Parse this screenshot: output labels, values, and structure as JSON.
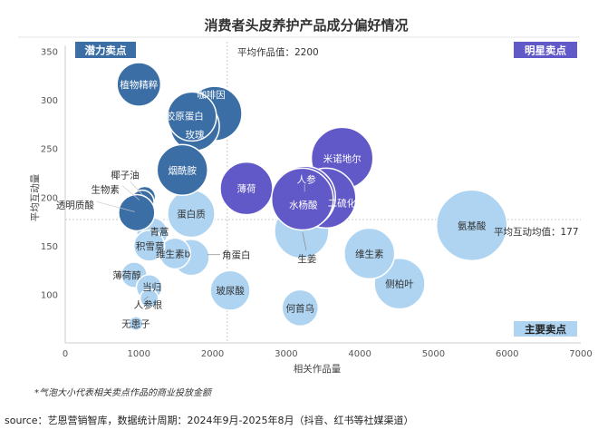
{
  "chart_data": {
    "type": "bubble",
    "title": "消费者头皮养护产品成分偏好情况",
    "xlabel": "相关作品量",
    "ylabel": "平均互动量",
    "xlim": [
      0,
      7000
    ],
    "ylim": [
      50,
      350
    ],
    "xticks": [
      "0",
      "1000",
      "2000",
      "3000",
      "4000",
      "5000",
      "6000",
      "7000"
    ],
    "yticks": [
      "100",
      "150",
      "200",
      "250",
      "300",
      "350"
    ],
    "grid": false,
    "reference_lines": {
      "x_mean": 2200,
      "x_mean_label": "平均作品值：2200",
      "y_mean": 177,
      "y_mean_label": "平均互动均值：177"
    },
    "quadrants": {
      "potential": {
        "label": "潜力卖点",
        "color": "#3a6ea5"
      },
      "star": {
        "label": "明星卖点",
        "color": "#6259c8"
      },
      "main": {
        "label": "主要卖点",
        "color": "#aed4f2"
      }
    },
    "size_note": "*气泡大小代表相关卖点作品的商业投放金额",
    "bubbles": [
      {
        "name": "氨基酸",
        "x": 5520,
        "y": 171,
        "size": 152,
        "group": "main"
      },
      {
        "name": "侧柏叶",
        "x": 4540,
        "y": 111,
        "size": 78,
        "group": "main"
      },
      {
        "name": "维生素",
        "x": 4130,
        "y": 142,
        "size": 78,
        "group": "main"
      },
      {
        "name": "生姜",
        "x": 3210,
        "y": 165,
        "size": 90,
        "group": "main"
      },
      {
        "name": "何首乌",
        "x": 3190,
        "y": 86,
        "size": 40,
        "group": "main"
      },
      {
        "name": "玻尿酸",
        "x": 2240,
        "y": 104,
        "size": 48,
        "group": "main"
      },
      {
        "name": "蛋白质",
        "x": 1710,
        "y": 183,
        "size": 68,
        "group": "main"
      },
      {
        "name": "角蛋白",
        "x": 1710,
        "y": 138,
        "size": 40,
        "group": "main"
      },
      {
        "name": "维生素b",
        "x": 1490,
        "y": 142,
        "size": 29,
        "group": "main"
      },
      {
        "name": "青蒿",
        "x": 1180,
        "y": 163,
        "size": 29,
        "group": "main"
      },
      {
        "name": "积雪草",
        "x": 1140,
        "y": 150,
        "size": 29,
        "group": "main"
      },
      {
        "name": "薄荷醇",
        "x": 935,
        "y": 120,
        "size": 20,
        "group": "main"
      },
      {
        "name": "当归",
        "x": 1140,
        "y": 107,
        "size": 20,
        "group": "main"
      },
      {
        "name": "人参根",
        "x": 1140,
        "y": 96,
        "size": 10,
        "group": "main"
      },
      {
        "name": "无患子",
        "x": 960,
        "y": 70,
        "size": 6,
        "group": "main"
      },
      {
        "name": "植物精粹",
        "x": 1000,
        "y": 316,
        "size": 58,
        "group": "potential"
      },
      {
        "name": "咖啡因",
        "x": 2030,
        "y": 286,
        "size": 90,
        "group": "potential"
      },
      {
        "name": "玫瑰",
        "x": 1760,
        "y": 273,
        "size": 73,
        "group": "potential"
      },
      {
        "name": "胶原蛋白",
        "x": 1720,
        "y": 283,
        "size": 73,
        "group": "potential"
      },
      {
        "name": "烟酰胺",
        "x": 1590,
        "y": 228,
        "size": 78,
        "group": "potential"
      },
      {
        "name": "椰子油",
        "x": 1080,
        "y": 200,
        "size": 14,
        "group": "potential"
      },
      {
        "name": "生物素",
        "x": 1045,
        "y": 195,
        "size": 17,
        "group": "potential"
      },
      {
        "name": "透明质酸",
        "x": 970,
        "y": 184,
        "size": 40,
        "group": "potential"
      },
      {
        "name": "薄荷",
        "x": 2460,
        "y": 209,
        "size": 84,
        "group": "star"
      },
      {
        "name": "米诺地尔",
        "x": 3760,
        "y": 240,
        "size": 116,
        "group": "star"
      },
      {
        "name": "二硫化硒",
        "x": 3540,
        "y": 199,
        "size": 109,
        "group": "star"
      },
      {
        "name": "人参",
        "x": 3250,
        "y": 200,
        "size": 116,
        "group": "star"
      },
      {
        "name": "水杨酸",
        "x": 3220,
        "y": 198,
        "size": 116,
        "group": "star"
      }
    ]
  },
  "footer": {
    "source": "source：艺恩营销智库，数据统计周期：2024年9月-2025年8月（抖音、红书等社媒渠道）"
  }
}
